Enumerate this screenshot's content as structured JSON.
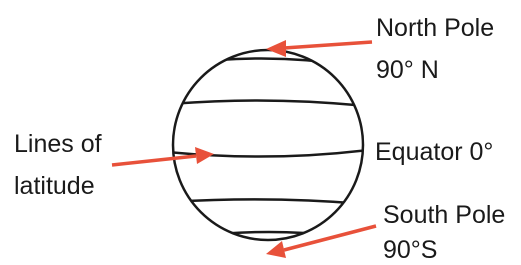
{
  "north_pole": {
    "name": "North Pole",
    "latitude": "90° N"
  },
  "lines_of_latitude": {
    "line1": "Lines of",
    "line2": "latitude"
  },
  "equator": "Equator 0°",
  "south_pole": {
    "name": "South Pole",
    "latitude": "90°S"
  }
}
